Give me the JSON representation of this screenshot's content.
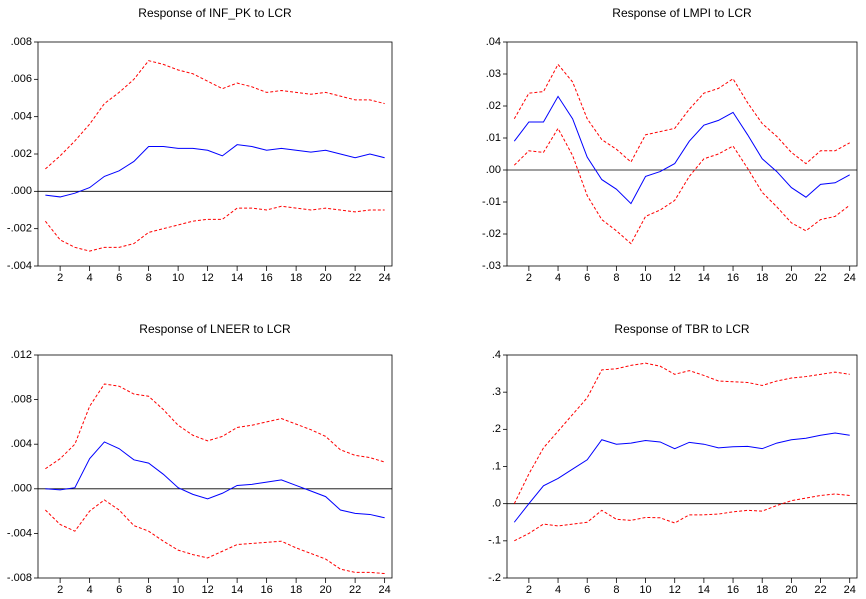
{
  "chart_data": [
    {
      "type": "line",
      "title": "Response of INF_PK to LCR",
      "x": [
        1,
        2,
        3,
        4,
        5,
        6,
        7,
        8,
        9,
        10,
        11,
        12,
        13,
        14,
        15,
        16,
        17,
        18,
        19,
        20,
        21,
        22,
        23,
        24
      ],
      "xlim": [
        0.5,
        24.5
      ],
      "xticks": [
        2,
        4,
        6,
        8,
        10,
        12,
        14,
        16,
        18,
        20,
        22,
        24
      ],
      "ylim": [
        -0.004,
        0.008
      ],
      "yticks": [
        {
          "value": -0.004,
          "label": "-.004"
        },
        {
          "value": -0.002,
          "label": "-.002"
        },
        {
          "value": 0,
          "label": ".000"
        },
        {
          "value": 0.002,
          "label": ".002"
        },
        {
          "value": 0.004,
          "label": ".004"
        },
        {
          "value": 0.006,
          "label": ".006"
        },
        {
          "value": 0.008,
          "label": ".008"
        }
      ],
      "series": [
        {
          "color": "#0000ff",
          "style": "solid",
          "values": [
            -0.0002,
            -0.0003,
            -0.0001,
            0.0002,
            0.0008,
            0.0011,
            0.0016,
            0.0024,
            0.0024,
            0.0023,
            0.0023,
            0.0022,
            0.0019,
            0.0025,
            0.0024,
            0.0022,
            0.0023,
            0.0022,
            0.0021,
            0.0022,
            0.002,
            0.0018,
            0.002,
            0.0018
          ]
        },
        {
          "color": "#ff0000",
          "style": "dashed",
          "values": [
            0.0012,
            0.0019,
            0.0027,
            0.0036,
            0.0047,
            0.0053,
            0.006,
            0.007,
            0.0068,
            0.0065,
            0.0063,
            0.0059,
            0.0055,
            0.0058,
            0.0056,
            0.0053,
            0.0054,
            0.0053,
            0.0052,
            0.0053,
            0.0051,
            0.0049,
            0.0049,
            0.0047
          ]
        },
        {
          "color": "#ff0000",
          "style": "dashed",
          "values": [
            -0.0016,
            -0.0026,
            -0.003,
            -0.0032,
            -0.003,
            -0.003,
            -0.0028,
            -0.0022,
            -0.002,
            -0.0018,
            -0.0016,
            -0.0015,
            -0.0015,
            -0.0009,
            -0.0009,
            -0.001,
            -0.0008,
            -0.0009,
            -0.001,
            -0.0009,
            -0.001,
            -0.0011,
            -0.001,
            -0.001
          ]
        }
      ]
    },
    {
      "type": "line",
      "title": "Response of LMPI to LCR",
      "x": [
        1,
        2,
        3,
        4,
        5,
        6,
        7,
        8,
        9,
        10,
        11,
        12,
        13,
        14,
        15,
        16,
        17,
        18,
        19,
        20,
        21,
        22,
        23,
        24
      ],
      "xlim": [
        0.5,
        24.5
      ],
      "xticks": [
        2,
        4,
        6,
        8,
        10,
        12,
        14,
        16,
        18,
        20,
        22,
        24
      ],
      "ylim": [
        -0.03,
        0.04
      ],
      "yticks": [
        {
          "value": -0.03,
          "label": "-.03"
        },
        {
          "value": -0.02,
          "label": "-.02"
        },
        {
          "value": -0.01,
          "label": "-.01"
        },
        {
          "value": 0,
          "label": ".00"
        },
        {
          "value": 0.01,
          "label": ".01"
        },
        {
          "value": 0.02,
          "label": ".02"
        },
        {
          "value": 0.03,
          "label": ".03"
        },
        {
          "value": 0.04,
          "label": ".04"
        }
      ],
      "series": [
        {
          "color": "#0000ff",
          "style": "solid",
          "values": [
            0.009,
            0.015,
            0.015,
            0.023,
            0.016,
            0.004,
            -0.003,
            -0.006,
            -0.0105,
            -0.002,
            -0.0005,
            0.002,
            0.009,
            0.014,
            0.0155,
            0.018,
            0.011,
            0.0035,
            -0.0005,
            -0.0055,
            -0.0085,
            -0.0045,
            -0.004,
            -0.0015
          ]
        },
        {
          "color": "#ff0000",
          "style": "dashed",
          "values": [
            0.016,
            0.024,
            0.0245,
            0.033,
            0.0275,
            0.016,
            0.0095,
            0.0065,
            0.0025,
            0.011,
            0.012,
            0.013,
            0.019,
            0.024,
            0.0255,
            0.0285,
            0.021,
            0.0145,
            0.0105,
            0.0055,
            0.002,
            0.006,
            0.006,
            0.0085
          ]
        },
        {
          "color": "#ff0000",
          "style": "dashed",
          "values": [
            0.0015,
            0.006,
            0.0055,
            0.013,
            0.0045,
            -0.008,
            -0.0155,
            -0.019,
            -0.023,
            -0.0145,
            -0.0125,
            -0.0095,
            -0.002,
            0.0035,
            0.005,
            0.0075,
            0.0005,
            -0.007,
            -0.0115,
            -0.0165,
            -0.019,
            -0.0155,
            -0.0145,
            -0.011
          ]
        }
      ]
    },
    {
      "type": "line",
      "title": "Response of LNEER to LCR",
      "x": [
        1,
        2,
        3,
        4,
        5,
        6,
        7,
        8,
        9,
        10,
        11,
        12,
        13,
        14,
        15,
        16,
        17,
        18,
        19,
        20,
        21,
        22,
        23,
        24
      ],
      "xlim": [
        0.5,
        24.5
      ],
      "xticks": [
        2,
        4,
        6,
        8,
        10,
        12,
        14,
        16,
        18,
        20,
        22,
        24
      ],
      "ylim": [
        -0.008,
        0.012
      ],
      "yticks": [
        {
          "value": -0.008,
          "label": "-.008"
        },
        {
          "value": -0.004,
          "label": "-.004"
        },
        {
          "value": 0,
          "label": ".000"
        },
        {
          "value": 0.004,
          "label": ".004"
        },
        {
          "value": 0.008,
          "label": ".008"
        },
        {
          "value": 0.012,
          "label": ".012"
        }
      ],
      "series": [
        {
          "color": "#0000ff",
          "style": "solid",
          "values": [
            0,
            -0.0001,
            0.0001,
            0.0027,
            0.0042,
            0.0036,
            0.0026,
            0.0023,
            0.0013,
            0.0001,
            -0.0005,
            -0.0009,
            -0.0004,
            0.0003,
            0.0004,
            0.0006,
            0.0008,
            0.0003,
            -0.0002,
            -0.0007,
            -0.0019,
            -0.0022,
            -0.0023,
            -0.0026
          ]
        },
        {
          "color": "#ff0000",
          "style": "dashed",
          "values": [
            0.0018,
            0.0027,
            0.004,
            0.0074,
            0.0094,
            0.0092,
            0.0085,
            0.0083,
            0.0071,
            0.0057,
            0.0048,
            0.0043,
            0.0047,
            0.0055,
            0.0057,
            0.006,
            0.0063,
            0.0058,
            0.0053,
            0.0047,
            0.0035,
            0.003,
            0.0028,
            0.0024
          ]
        },
        {
          "color": "#ff0000",
          "style": "dashed",
          "values": [
            -0.0019,
            -0.0032,
            -0.0038,
            -0.002,
            -0.001,
            -0.0019,
            -0.0033,
            -0.0038,
            -0.0047,
            -0.0055,
            -0.0059,
            -0.0062,
            -0.0056,
            -0.005,
            -0.0049,
            -0.0048,
            -0.0047,
            -0.0053,
            -0.0058,
            -0.0063,
            -0.0072,
            -0.0075,
            -0.0075,
            -0.0076
          ]
        }
      ]
    },
    {
      "type": "line",
      "title": "Response of TBR to LCR",
      "x": [
        1,
        2,
        3,
        4,
        5,
        6,
        7,
        8,
        9,
        10,
        11,
        12,
        13,
        14,
        15,
        16,
        17,
        18,
        19,
        20,
        21,
        22,
        23,
        24
      ],
      "xlim": [
        0.5,
        24.5
      ],
      "xticks": [
        2,
        4,
        6,
        8,
        10,
        12,
        14,
        16,
        18,
        20,
        22,
        24
      ],
      "ylim": [
        -0.2,
        0.4
      ],
      "yticks": [
        {
          "value": -0.2,
          "label": "-.2"
        },
        {
          "value": -0.1,
          "label": "-.1"
        },
        {
          "value": 0,
          "label": ".0"
        },
        {
          "value": 0.1,
          "label": ".1"
        },
        {
          "value": 0.2,
          "label": ".2"
        },
        {
          "value": 0.3,
          "label": ".3"
        },
        {
          "value": 0.4,
          "label": ".4"
        }
      ],
      "series": [
        {
          "color": "#0000ff",
          "style": "solid",
          "values": [
            -0.05,
            0.0,
            0.048,
            0.068,
            0.093,
            0.118,
            0.172,
            0.16,
            0.163,
            0.17,
            0.166,
            0.148,
            0.165,
            0.16,
            0.15,
            0.153,
            0.154,
            0.148,
            0.163,
            0.172,
            0.176,
            0.184,
            0.19,
            0.184
          ]
        },
        {
          "color": "#ff0000",
          "style": "dashed",
          "values": [
            0.0,
            0.08,
            0.15,
            0.195,
            0.24,
            0.285,
            0.36,
            0.363,
            0.372,
            0.378,
            0.37,
            0.348,
            0.358,
            0.345,
            0.33,
            0.328,
            0.326,
            0.318,
            0.33,
            0.338,
            0.342,
            0.348,
            0.354,
            0.348
          ]
        },
        {
          "color": "#ff0000",
          "style": "dashed",
          "values": [
            -0.1,
            -0.08,
            -0.055,
            -0.06,
            -0.055,
            -0.05,
            -0.018,
            -0.042,
            -0.045,
            -0.037,
            -0.038,
            -0.052,
            -0.03,
            -0.03,
            -0.028,
            -0.022,
            -0.018,
            -0.02,
            -0.005,
            0.008,
            0.015,
            0.022,
            0.026,
            0.022
          ]
        }
      ]
    }
  ]
}
